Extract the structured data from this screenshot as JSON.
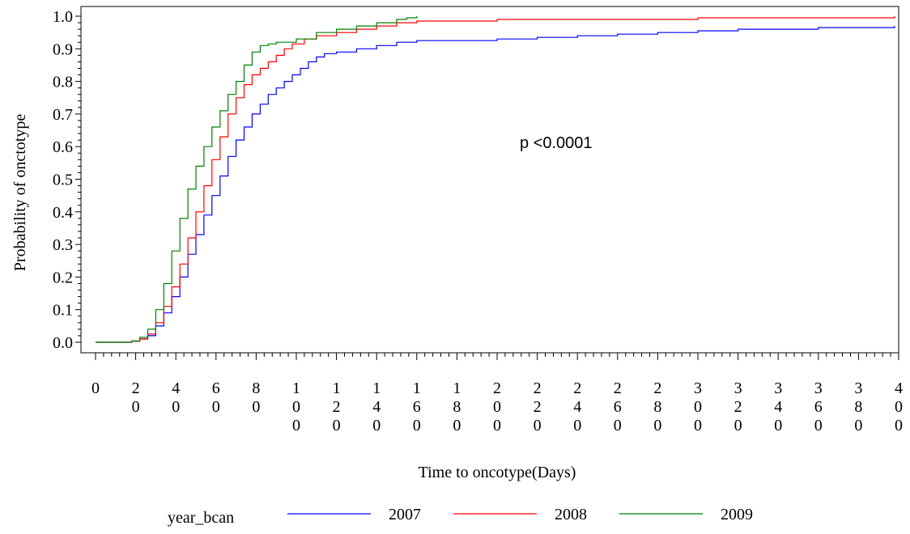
{
  "chart_data": {
    "type": "line",
    "step": true,
    "xlabel": "Time to oncotype(Days)",
    "ylabel": "Probability of onctotype",
    "xlim": [
      0,
      400
    ],
    "ylim": [
      0,
      1
    ],
    "x_ticks": [
      0,
      20,
      40,
      60,
      80,
      100,
      120,
      140,
      160,
      180,
      200,
      220,
      240,
      260,
      280,
      300,
      320,
      340,
      360,
      380,
      400
    ],
    "y_ticks": [
      0.0,
      0.1,
      0.2,
      0.3,
      0.4,
      0.5,
      0.6,
      0.7,
      0.8,
      0.9,
      1.0
    ],
    "y_tick_labels": [
      "0.0",
      "0.1",
      "0.2",
      "0.3",
      "0.4",
      "0.5",
      "0.6",
      "0.7",
      "0.8",
      "0.9",
      "1.0"
    ],
    "annotation": "p <0.0001",
    "legend": {
      "title": "year_bcan",
      "placement": "bottom"
    },
    "series": [
      {
        "name": "2007",
        "color": "#0000ff",
        "x": [
          0,
          10,
          18,
          22,
          26,
          30,
          34,
          38,
          42,
          46,
          50,
          54,
          58,
          62,
          66,
          70,
          74,
          78,
          82,
          86,
          90,
          94,
          98,
          102,
          106,
          110,
          114,
          120,
          130,
          140,
          150,
          160,
          170,
          180,
          200,
          220,
          240,
          260,
          280,
          300,
          320,
          340,
          360,
          380,
          398
        ],
        "y": [
          0,
          0,
          0.003,
          0.01,
          0.02,
          0.05,
          0.09,
          0.14,
          0.2,
          0.27,
          0.33,
          0.39,
          0.45,
          0.51,
          0.57,
          0.62,
          0.66,
          0.7,
          0.73,
          0.76,
          0.78,
          0.8,
          0.82,
          0.84,
          0.86,
          0.875,
          0.885,
          0.89,
          0.9,
          0.91,
          0.92,
          0.925,
          0.925,
          0.925,
          0.93,
          0.935,
          0.94,
          0.945,
          0.95,
          0.955,
          0.96,
          0.96,
          0.965,
          0.965,
          0.97
        ]
      },
      {
        "name": "2008",
        "color": "#ff0000",
        "x": [
          0,
          10,
          18,
          22,
          26,
          30,
          34,
          38,
          42,
          46,
          50,
          54,
          58,
          62,
          66,
          70,
          74,
          78,
          82,
          86,
          90,
          94,
          98,
          104,
          110,
          120,
          130,
          140,
          150,
          160,
          170,
          200,
          250,
          300,
          350,
          398
        ],
        "y": [
          0,
          0,
          0.003,
          0.01,
          0.025,
          0.06,
          0.11,
          0.17,
          0.24,
          0.32,
          0.4,
          0.48,
          0.56,
          0.63,
          0.7,
          0.75,
          0.79,
          0.82,
          0.84,
          0.86,
          0.88,
          0.9,
          0.915,
          0.93,
          0.94,
          0.95,
          0.96,
          0.97,
          0.98,
          0.985,
          0.985,
          0.99,
          0.99,
          0.995,
          0.995,
          1.0
        ]
      },
      {
        "name": "2009",
        "color": "#008000",
        "x": [
          0,
          10,
          18,
          22,
          26,
          30,
          34,
          38,
          42,
          46,
          50,
          54,
          58,
          62,
          66,
          70,
          74,
          78,
          82,
          86,
          90,
          100,
          110,
          120,
          130,
          140,
          150,
          155,
          160
        ],
        "y": [
          0,
          0,
          0.004,
          0.015,
          0.04,
          0.1,
          0.18,
          0.28,
          0.38,
          0.47,
          0.54,
          0.6,
          0.66,
          0.71,
          0.76,
          0.8,
          0.85,
          0.89,
          0.91,
          0.915,
          0.92,
          0.93,
          0.95,
          0.96,
          0.97,
          0.98,
          0.99,
          0.995,
          1.0
        ]
      }
    ]
  }
}
